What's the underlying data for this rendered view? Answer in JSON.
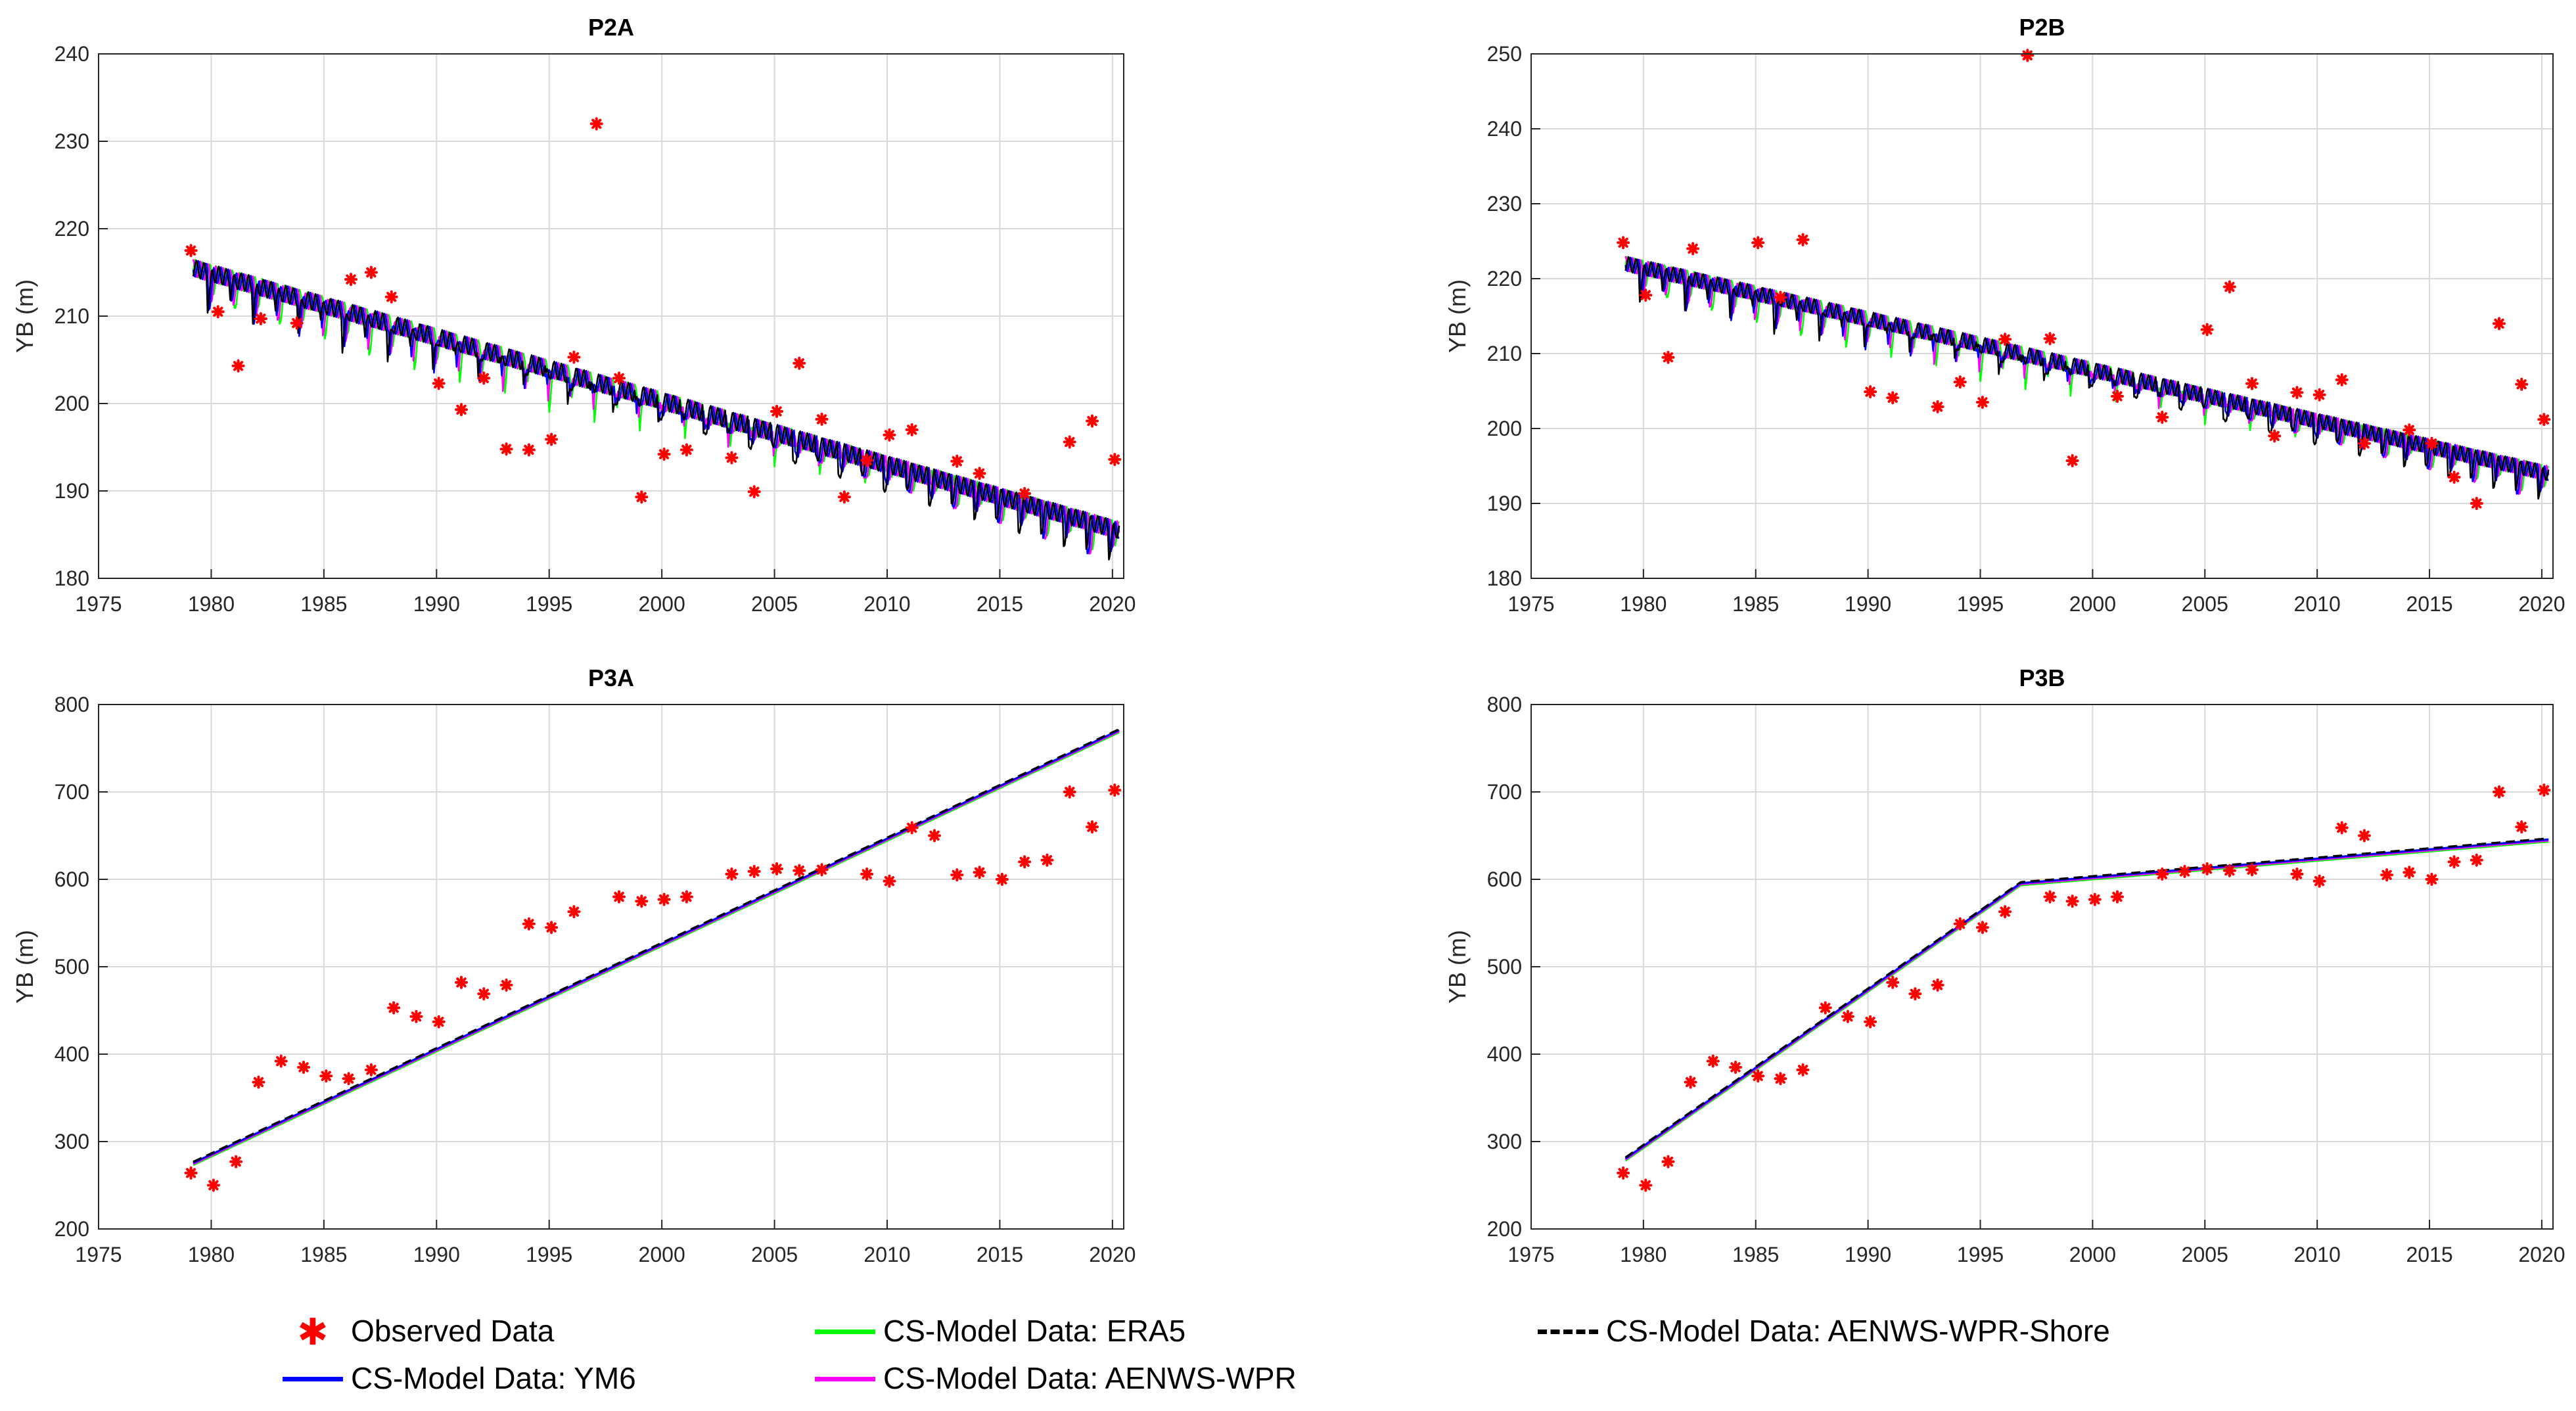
{
  "colors": {
    "observed": "#ff0000",
    "ym6": "#0000ff",
    "era5": "#00ff00",
    "aenws_wpr": "#ff00ff",
    "aenws_wpr_shore": "#000000",
    "grid": "#d9d9d9",
    "axis": "#262626"
  },
  "legend": {
    "observed": "Observed Data",
    "era5": "CS-Model Data: ERA5",
    "shore": "CS-Model Data: AENWS-WPR-Shore",
    "ym6": "CS-Model Data: YM6",
    "aenws": "CS-Model Data: AENWS-WPR"
  },
  "chart_data": [
    {
      "type": "line",
      "title": "P2A",
      "ylabel": "YB (m)",
      "xlabel": "",
      "xlim": [
        1975,
        2020.5
      ],
      "ylim": [
        180,
        240
      ],
      "xticks": [
        1975,
        1980,
        1985,
        1990,
        1995,
        2000,
        2005,
        2010,
        2015,
        2020
      ],
      "yticks": [
        180,
        190,
        200,
        210,
        220,
        230,
        240
      ],
      "grid": true,
      "model_trend": {
        "x": [
          1979.2,
          2020.3
        ],
        "y": [
          215.5,
          185.5
        ]
      },
      "seasonal_amplitude": 4,
      "observed": {
        "x": [
          1979.1,
          1980.3,
          1981.2,
          1982.2,
          1983.8,
          1986.2,
          1987.1,
          1988.0,
          1990.1,
          1991.1,
          1992.1,
          1993.1,
          1994.1,
          1995.1,
          1996.1,
          1997.1,
          1998.1,
          1999.1,
          2000.1,
          2001.1,
          2003.1,
          2004.1,
          2005.1,
          2006.1,
          2007.1,
          2008.1,
          2009.1,
          2010.1,
          2011.1,
          2013.1,
          2014.1,
          2016.1,
          2018.1,
          2019.1,
          2020.1
        ],
        "y": [
          217.5,
          210.5,
          204.3,
          209.7,
          209.2,
          214.2,
          215.0,
          212.2,
          202.3,
          199.3,
          202.9,
          194.8,
          194.7,
          195.9,
          205.3,
          232.0,
          202.9,
          189.3,
          194.2,
          194.7,
          193.8,
          189.9,
          199.1,
          204.6,
          198.2,
          189.3,
          193.5,
          196.4,
          197.0,
          193.4,
          192.0,
          189.7,
          195.6,
          198.0,
          193.6
        ]
      },
      "series": [
        {
          "name": "CS-Model Data: ERA5",
          "color": "#00ff00"
        },
        {
          "name": "CS-Model Data: AENWS-WPR",
          "color": "#ff00ff"
        },
        {
          "name": "CS-Model Data: YM6",
          "color": "#0000ff"
        },
        {
          "name": "CS-Model Data: AENWS-WPR-Shore",
          "color": "#000000"
        }
      ]
    },
    {
      "type": "line",
      "title": "P2B",
      "ylabel": "YB (m)",
      "xlabel": "",
      "xlim": [
        1975,
        2020.5
      ],
      "ylim": [
        180,
        250
      ],
      "xticks": [
        1975,
        1980,
        1985,
        1990,
        1995,
        2000,
        2005,
        2010,
        2015,
        2020
      ],
      "yticks": [
        180,
        190,
        200,
        210,
        220,
        230,
        240,
        250
      ],
      "grid": true,
      "model_trend": {
        "x": [
          1979.2,
          2020.3
        ],
        "y": [
          222.0,
          194.0
        ]
      },
      "seasonal_amplitude": 4,
      "observed": {
        "x": [
          1979.1,
          1980.1,
          1981.1,
          1982.2,
          1985.1,
          1986.1,
          1987.1,
          1990.1,
          1991.1,
          1993.1,
          1994.1,
          1995.1,
          1996.1,
          1997.1,
          1998.1,
          1999.1,
          2001.1,
          2003.1,
          2005.1,
          2006.1,
          2007.1,
          2008.1,
          2009.1,
          2010.1,
          2011.1,
          2012.1,
          2014.1,
          2015.1,
          2016.1,
          2017.1,
          2018.1,
          2019.1,
          2020.1
        ],
        "y": [
          224.8,
          217.8,
          209.5,
          224.0,
          224.8,
          217.5,
          225.2,
          204.9,
          204.1,
          202.9,
          206.2,
          203.5,
          211.9,
          249.8,
          212.0,
          195.7,
          204.3,
          201.5,
          213.2,
          218.9,
          206.0,
          199.0,
          204.8,
          204.5,
          206.5,
          198.0,
          199.8,
          198.0,
          193.5,
          190.0,
          214.0,
          205.9,
          201.2
        ]
      },
      "series": [
        {
          "name": "CS-Model Data: ERA5",
          "color": "#00ff00"
        },
        {
          "name": "CS-Model Data: AENWS-WPR",
          "color": "#ff00ff"
        },
        {
          "name": "CS-Model Data: YM6",
          "color": "#0000ff"
        },
        {
          "name": "CS-Model Data: AENWS-WPR-Shore",
          "color": "#000000"
        }
      ]
    },
    {
      "type": "line",
      "title": "P3A",
      "ylabel": "YB (m)",
      "xlabel": "",
      "xlim": [
        1975,
        2020.5
      ],
      "ylim": [
        200,
        800
      ],
      "xticks": [
        1975,
        1980,
        1985,
        1990,
        1995,
        2000,
        2005,
        2010,
        2015,
        2020
      ],
      "yticks": [
        200,
        300,
        400,
        500,
        600,
        700,
        800
      ],
      "grid": true,
      "model_trend": {
        "x": [
          1979.2,
          2020.3
        ],
        "y": [
          275,
          770
        ]
      },
      "seasonal_amplitude": 0,
      "observed": {
        "x": [
          1979.1,
          1980.1,
          1981.1,
          1982.1,
          1983.1,
          1984.1,
          1985.1,
          1986.1,
          1987.1,
          1988.1,
          1989.1,
          1990.1,
          1991.1,
          1992.1,
          1993.1,
          1994.1,
          1995.1,
          1996.1,
          1998.1,
          1999.1,
          2000.1,
          2001.1,
          2003.1,
          2004.1,
          2005.1,
          2006.1,
          2007.1,
          2009.1,
          2010.1,
          2011.1,
          2012.1,
          2013.1,
          2014.1,
          2015.1,
          2016.1,
          2017.1,
          2018.1,
          2019.1,
          2020.1
        ],
        "y": [
          264,
          250,
          277,
          368,
          392,
          385,
          375,
          372,
          382,
          453,
          443,
          437,
          482,
          469,
          479,
          549,
          545,
          563,
          580,
          575,
          577,
          580,
          606,
          609,
          612,
          610,
          611,
          606,
          598,
          659,
          650,
          605,
          608,
          600,
          620,
          622,
          700,
          660,
          702
        ]
      },
      "series": [
        {
          "name": "CS-Model Data: ERA5",
          "color": "#00ff00"
        },
        {
          "name": "CS-Model Data: AENWS-WPR",
          "color": "#ff00ff"
        },
        {
          "name": "CS-Model Data: YM6",
          "color": "#0000ff"
        },
        {
          "name": "CS-Model Data: AENWS-WPR-Shore",
          "color": "#000000"
        }
      ]
    },
    {
      "type": "line",
      "title": "P3B",
      "ylabel": "YB (m)",
      "xlabel": "",
      "xlim": [
        1975,
        2020.5
      ],
      "ylim": [
        200,
        800
      ],
      "xticks": [
        1975,
        1980,
        1985,
        1990,
        1995,
        2000,
        2005,
        2010,
        2015,
        2020
      ],
      "yticks": [
        200,
        300,
        400,
        500,
        600,
        700,
        800
      ],
      "grid": true,
      "model_trend": {
        "x": [
          1979.2,
          1996.8,
          2020.3
        ],
        "y": [
          280,
          595,
          645
        ]
      },
      "seasonal_amplitude": 0,
      "observed": {
        "x": [
          1979.1,
          1980.1,
          1981.1,
          1982.1,
          1983.1,
          1984.1,
          1985.1,
          1986.1,
          1987.1,
          1988.1,
          1989.1,
          1990.1,
          1991.1,
          1992.1,
          1993.1,
          1994.1,
          1995.1,
          1996.1,
          1998.1,
          1999.1,
          2000.1,
          2001.1,
          2003.1,
          2004.1,
          2005.1,
          2006.1,
          2007.1,
          2009.1,
          2010.1,
          2011.1,
          2012.1,
          2013.1,
          2014.1,
          2015.1,
          2016.1,
          2017.1,
          2018.1,
          2019.1,
          2020.1
        ],
        "y": [
          264,
          250,
          277,
          368,
          392,
          385,
          375,
          372,
          382,
          453,
          443,
          437,
          482,
          469,
          479,
          549,
          545,
          563,
          580,
          575,
          577,
          580,
          606,
          609,
          612,
          610,
          611,
          606,
          598,
          659,
          650,
          605,
          608,
          600,
          620,
          622,
          700,
          660,
          702
        ]
      },
      "series": [
        {
          "name": "CS-Model Data: ERA5",
          "color": "#00ff00"
        },
        {
          "name": "CS-Model Data: AENWS-WPR",
          "color": "#ff00ff"
        },
        {
          "name": "CS-Model Data: YM6",
          "color": "#0000ff"
        },
        {
          "name": "CS-Model Data: AENWS-WPR-Shore",
          "color": "#000000"
        }
      ]
    }
  ]
}
